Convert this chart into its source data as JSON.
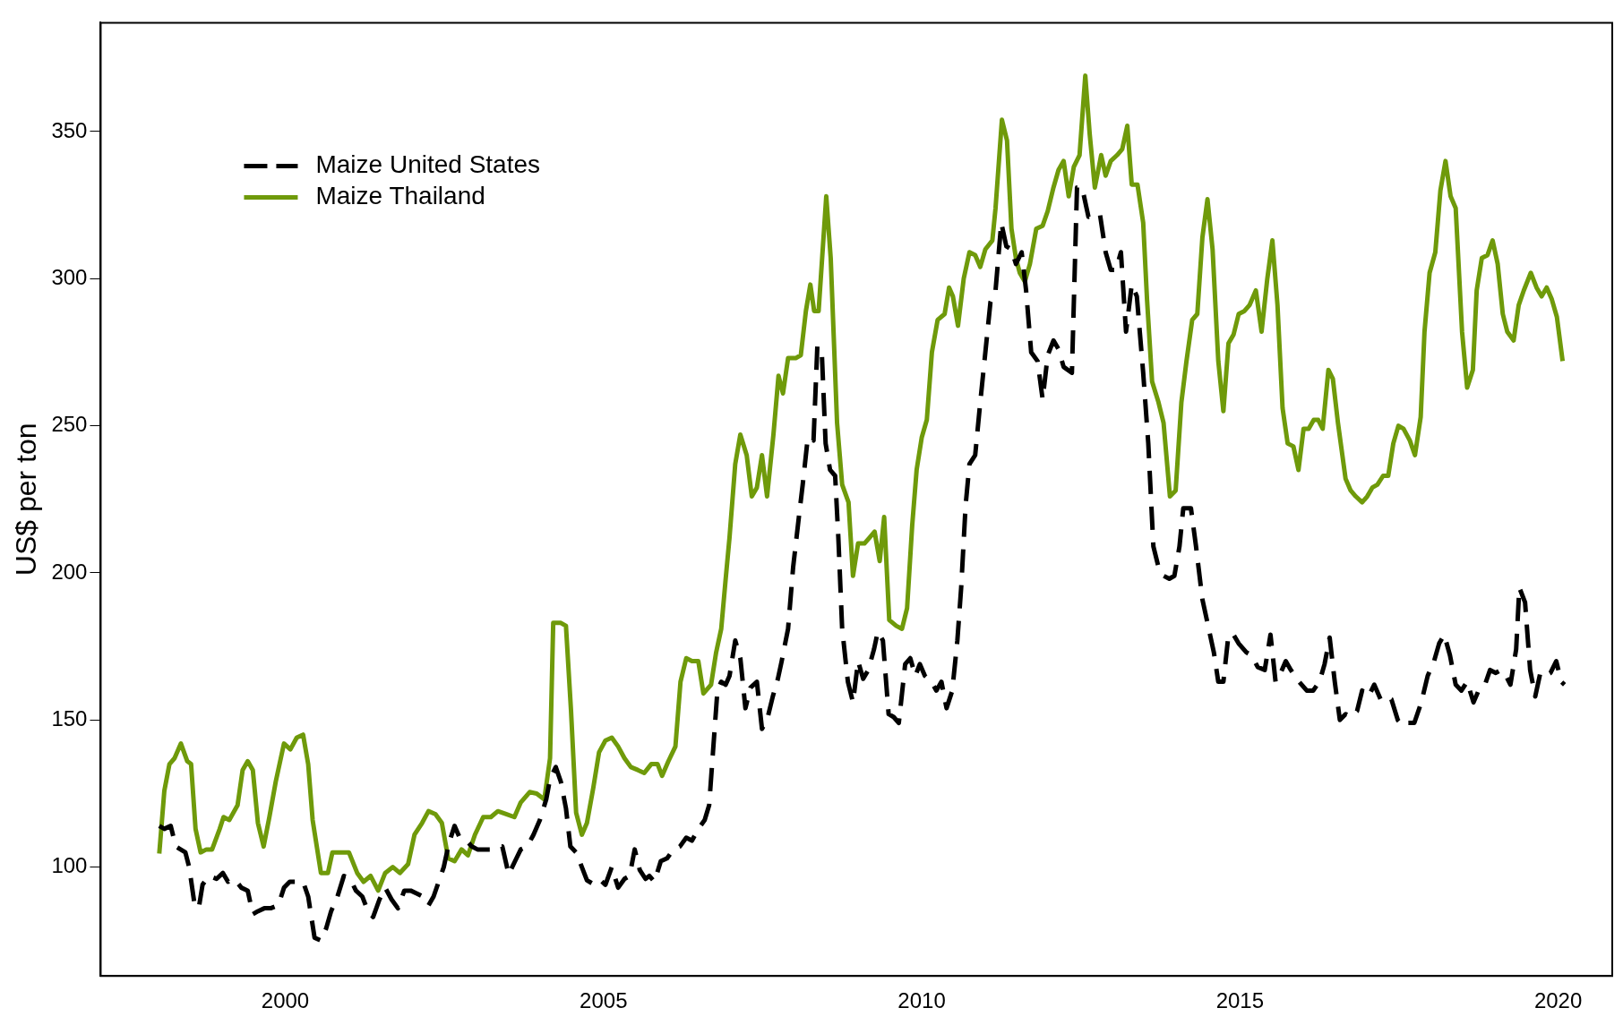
{
  "chart_data": {
    "type": "line",
    "ylabel": "US$ per ton",
    "xlim": [
      1997.1,
      2020.85
    ],
    "ylim": [
      63,
      387
    ],
    "xticks": [
      2000,
      2005,
      2010,
      2015,
      2020
    ],
    "yticks": [
      100,
      150,
      200,
      250,
      300,
      350
    ],
    "grid": false,
    "legend": "top left",
    "marker": "none",
    "series": [
      {
        "name": "Maize United States",
        "color": "#000000",
        "line_style": "dashed",
        "x": [
          1998.02,
          1998.1,
          1998.2,
          1998.28,
          1998.43,
          1998.49,
          1998.57,
          1998.64,
          1998.7,
          1998.8,
          1998.92,
          1999.02,
          1999.1,
          1999.2,
          1999.31,
          1999.41,
          1999.49,
          1999.57,
          1999.67,
          1999.77,
          1999.89,
          1999.98,
          2000.07,
          2000.18,
          2000.28,
          2000.36,
          2000.46,
          2000.56,
          2000.64,
          2000.72,
          2000.82,
          2000.92,
          2001.02,
          2001.11,
          2001.21,
          2001.3,
          2001.38,
          2001.48,
          2001.57,
          2001.67,
          2001.77,
          2001.87,
          2001.97,
          2002.07,
          2002.16,
          2002.25,
          2002.33,
          2002.41,
          2002.49,
          2002.57,
          2002.66,
          2002.74,
          2002.85,
          2002.93,
          2003.02,
          2003.13,
          2003.23,
          2003.31,
          2003.41,
          2003.51,
          2003.61,
          2003.7,
          2003.8,
          2003.9,
          2004.0,
          2004.1,
          2004.16,
          2004.25,
          2004.33,
          2004.41,
          2004.48,
          2004.57,
          2004.66,
          2004.74,
          2004.82,
          2004.93,
          2005.03,
          2005.13,
          2005.23,
          2005.33,
          2005.41,
          2005.49,
          2005.57,
          2005.66,
          2005.72,
          2005.8,
          2005.9,
          2006.0,
          2006.1,
          2006.2,
          2006.3,
          2006.39,
          2006.49,
          2006.59,
          2006.66,
          2006.72,
          2006.79,
          2006.85,
          2006.92,
          2006.98,
          2007.07,
          2007.15,
          2007.23,
          2007.31,
          2007.41,
          2007.49,
          2007.57,
          2007.66,
          2007.74,
          2007.8,
          2007.9,
          2007.98,
          2008.07,
          2008.13,
          2008.21,
          2008.3,
          2008.36,
          2008.43,
          2008.49,
          2008.56,
          2008.64,
          2008.69,
          2008.75,
          2008.84,
          2008.92,
          2009.0,
          2009.08,
          2009.16,
          2009.25,
          2009.31,
          2009.39,
          2009.48,
          2009.56,
          2009.64,
          2009.74,
          2009.82,
          2009.9,
          2009.97,
          2010.05,
          2010.15,
          2010.23,
          2010.31,
          2010.39,
          2010.48,
          2010.56,
          2010.62,
          2010.69,
          2010.75,
          2010.84,
          2010.92,
          2011.0,
          2011.08,
          2011.16,
          2011.25,
          2011.33,
          2011.41,
          2011.48,
          2011.57,
          2011.64,
          2011.72,
          2011.82,
          2011.9,
          2011.98,
          2012.07,
          2012.15,
          2012.23,
          2012.36,
          2012.44,
          2012.52,
          2012.62,
          2012.7,
          2012.8,
          2012.89,
          2012.97,
          2013.05,
          2013.13,
          2013.21,
          2013.3,
          2013.38,
          2013.48,
          2013.56,
          2013.64,
          2013.72,
          2013.8,
          2013.89,
          2013.97,
          2014.05,
          2014.11,
          2014.23,
          2014.31,
          2014.41,
          2014.51,
          2014.59,
          2014.66,
          2014.74,
          2014.82,
          2014.9,
          2014.98,
          2015.1,
          2015.18,
          2015.28,
          2015.39,
          2015.48,
          2015.56,
          2015.64,
          2015.72,
          2015.8,
          2015.89,
          2015.97,
          2016.05,
          2016.15,
          2016.25,
          2016.33,
          2016.41,
          2016.49,
          2016.57,
          2016.66,
          2016.75,
          2016.84,
          2016.92,
          2017.02,
          2017.11,
          2017.21,
          2017.3,
          2017.38,
          2017.48,
          2017.56,
          2017.64,
          2017.74,
          2017.85,
          2017.95,
          2018.05,
          2018.13,
          2018.21,
          2018.3,
          2018.39,
          2018.48,
          2018.57,
          2018.67,
          2018.75,
          2018.85,
          2018.93,
          2019.02,
          2019.1,
          2019.18,
          2019.25,
          2019.34,
          2019.39,
          2019.48,
          2019.56,
          2019.64,
          2019.72,
          2019.8,
          2019.88,
          2019.97,
          2020.05,
          2020.1
        ],
        "values": [
          114,
          113,
          114,
          107,
          105,
          100,
          88,
          86,
          94,
          97,
          96,
          98,
          95,
          96,
          93,
          92,
          84,
          85,
          86,
          86,
          87,
          93,
          95,
          95,
          95,
          90,
          76,
          75,
          79,
          85,
          90,
          97,
          96,
          92,
          90,
          85,
          83,
          89,
          93,
          89,
          86,
          92,
          92,
          91,
          90,
          87,
          90,
          95,
          100,
          108,
          114,
          110,
          109,
          107,
          106,
          106,
          106,
          107,
          107,
          97.5,
          102,
          106,
          107,
          111,
          116,
          123,
          130,
          134,
          129,
          120,
          107,
          105,
          100,
          95.5,
          94.5,
          96,
          94,
          100,
          93,
          96,
          97,
          106,
          99,
          96,
          97,
          95,
          102,
          103,
          106,
          107,
          110,
          109,
          113,
          116,
          121,
          139,
          160,
          163,
          162,
          165,
          177,
          171,
          154,
          161,
          163,
          147,
          150,
          158,
          164,
          170,
          181,
          202,
          219,
          230,
          246,
          245,
          277,
          275,
          244,
          235,
          233,
          212,
          181,
          163,
          156,
          170,
          164,
          167,
          174,
          180,
          177,
          152,
          151,
          149,
          169,
          171,
          165,
          169,
          165,
          163,
          160,
          163,
          154,
          160,
          177,
          195,
          223,
          237,
          240,
          258,
          275,
          292,
          296,
          319,
          311,
          310,
          305,
          309,
          296,
          275,
          272,
          259,
          274,
          279,
          276,
          270,
          268,
          331,
          331,
          321,
          321,
          322,
          309,
          303,
          303,
          309,
          282,
          298,
          294,
          268,
          244,
          209,
          202,
          199,
          198,
          199,
          209,
          222,
          222,
          209,
          191,
          181,
          173,
          163,
          163,
          179,
          179,
          176,
          173,
          172,
          168,
          167,
          179,
          163,
          166,
          170,
          167,
          164,
          162,
          160,
          160,
          163,
          169,
          178,
          163,
          150,
          152,
          151,
          153,
          160,
          158,
          162,
          157,
          158,
          157,
          150,
          148,
          149,
          149,
          156,
          165,
          170,
          176,
          179,
          172,
          162,
          160,
          163,
          156,
          160,
          162,
          167,
          166,
          167,
          165,
          162,
          174,
          195,
          190,
          167,
          158,
          166,
          165,
          166,
          170,
          163,
          162
        ]
      },
      {
        "name": "Maize Thailand",
        "color": "#6f9a0a",
        "line_style": "solid",
        "x": [
          1998.02,
          1998.1,
          1998.18,
          1998.26,
          1998.36,
          1998.46,
          1998.52,
          1998.59,
          1998.67,
          1998.76,
          1998.85,
          1998.97,
          1999.03,
          1999.12,
          1999.25,
          1999.33,
          1999.41,
          1999.49,
          1999.57,
          1999.66,
          1999.75,
          1999.85,
          1999.98,
          2000.08,
          2000.18,
          2000.28,
          2000.36,
          2000.43,
          2000.56,
          2000.67,
          2000.74,
          2000.89,
          2001.0,
          2001.13,
          2001.23,
          2001.34,
          2001.46,
          2001.57,
          2001.69,
          2001.8,
          2001.93,
          2002.03,
          2002.15,
          2002.25,
          2002.36,
          2002.46,
          2002.56,
          2002.66,
          2002.77,
          2002.87,
          2002.98,
          2003.11,
          2003.23,
          2003.34,
          2003.47,
          2003.6,
          2003.7,
          2003.84,
          2003.95,
          2004.07,
          2004.16,
          2004.21,
          2004.33,
          2004.41,
          2004.49,
          2004.57,
          2004.66,
          2004.74,
          2004.84,
          2004.93,
          2005.03,
          2005.13,
          2005.23,
          2005.33,
          2005.43,
          2005.54,
          2005.64,
          2005.75,
          2005.85,
          2005.92,
          2006.02,
          2006.13,
          2006.21,
          2006.3,
          2006.39,
          2006.49,
          2006.57,
          2006.69,
          2006.77,
          2006.85,
          2006.92,
          2006.98,
          2007.07,
          2007.15,
          2007.25,
          2007.33,
          2007.41,
          2007.49,
          2007.57,
          2007.67,
          2007.75,
          2007.82,
          2007.9,
          2008.02,
          2008.1,
          2008.18,
          2008.25,
          2008.31,
          2008.38,
          2008.5,
          2008.57,
          2008.67,
          2008.75,
          2008.85,
          2008.92,
          2009.0,
          2009.1,
          2009.18,
          2009.26,
          2009.34,
          2009.41,
          2009.49,
          2009.6,
          2009.69,
          2009.77,
          2009.85,
          2009.92,
          2010.0,
          2010.08,
          2010.16,
          2010.25,
          2010.36,
          2010.43,
          2010.49,
          2010.57,
          2010.66,
          2010.75,
          2010.84,
          2010.92,
          2011.0,
          2011.11,
          2011.16,
          2011.26,
          2011.34,
          2011.41,
          2011.48,
          2011.54,
          2011.62,
          2011.7,
          2011.8,
          2011.9,
          2011.98,
          2012.07,
          2012.15,
          2012.23,
          2012.31,
          2012.39,
          2012.48,
          2012.57,
          2012.64,
          2012.72,
          2012.82,
          2012.89,
          2012.97,
          2013.07,
          2013.15,
          2013.23,
          2013.3,
          2013.39,
          2013.48,
          2013.54,
          2013.62,
          2013.72,
          2013.8,
          2013.9,
          2013.99,
          2014.08,
          2014.16,
          2014.25,
          2014.33,
          2014.41,
          2014.49,
          2014.57,
          2014.66,
          2014.74,
          2014.82,
          2014.9,
          2014.98,
          2015.07,
          2015.15,
          2015.25,
          2015.34,
          2015.43,
          2015.51,
          2015.59,
          2015.67,
          2015.75,
          2015.84,
          2015.92,
          2016.0,
          2016.08,
          2016.16,
          2016.23,
          2016.3,
          2016.39,
          2016.46,
          2016.54,
          2016.66,
          2016.74,
          2016.82,
          2016.92,
          2017.0,
          2017.08,
          2017.16,
          2017.25,
          2017.33,
          2017.41,
          2017.49,
          2017.57,
          2017.67,
          2017.75,
          2017.84,
          2017.9,
          2017.98,
          2018.07,
          2018.15,
          2018.23,
          2018.31,
          2018.39,
          2018.49,
          2018.57,
          2018.66,
          2018.72,
          2018.8,
          2018.89,
          2018.97,
          2019.05,
          2019.13,
          2019.2,
          2019.3,
          2019.38,
          2019.46,
          2019.57,
          2019.66,
          2019.74,
          2019.82,
          2019.9,
          2019.98,
          2020.07
        ],
        "values": [
          104.6,
          126,
          135,
          137,
          142,
          136,
          135,
          113,
          105,
          106,
          106,
          113,
          117,
          116,
          121,
          133,
          136,
          133,
          115,
          107,
          117,
          129,
          142,
          140,
          144,
          145,
          135,
          116,
          98,
          98,
          105,
          105,
          105,
          98,
          95,
          97,
          92,
          98,
          100,
          98,
          101,
          111,
          115,
          119,
          118,
          115,
          103,
          102,
          106,
          104,
          111,
          117,
          117,
          119,
          118,
          117,
          122,
          125.5,
          125,
          123,
          137,
          183,
          183,
          182,
          153,
          118.5,
          111,
          115,
          127,
          139,
          143,
          144,
          141,
          137,
          134,
          133,
          132,
          135,
          135,
          131,
          136,
          141,
          163,
          171,
          170,
          170,
          159,
          162,
          173,
          181,
          198,
          212,
          237,
          247,
          240,
          226,
          229,
          240,
          226,
          247,
          267,
          261,
          273,
          273,
          274,
          289,
          298,
          289,
          289,
          328,
          307,
          251,
          230,
          224,
          199,
          210,
          210,
          212,
          214,
          204,
          219,
          184,
          182,
          181,
          188,
          216,
          235,
          246,
          252,
          275,
          286,
          288,
          297,
          294,
          284,
          300,
          309,
          308,
          304,
          310,
          313,
          324,
          354,
          347,
          317,
          307,
          302,
          299,
          305,
          317,
          318,
          323,
          331,
          337,
          340,
          328,
          338,
          342,
          369,
          349,
          331,
          342,
          335,
          340,
          342,
          344,
          352,
          332,
          332,
          319,
          293,
          265,
          258,
          251,
          226,
          228,
          258,
          272,
          286,
          288,
          314,
          327,
          310,
          272,
          255,
          278,
          281,
          288,
          289,
          291,
          296,
          282,
          300,
          313,
          291,
          256,
          244,
          243,
          235,
          249,
          249,
          252,
          252,
          249,
          269,
          266,
          251,
          232,
          228,
          226,
          224,
          226,
          229,
          230,
          233,
          233,
          244,
          250,
          249,
          245,
          240,
          253,
          282,
          302,
          309,
          330,
          340,
          328,
          324,
          282,
          263,
          269,
          296,
          307,
          308,
          313,
          305,
          288,
          282,
          279,
          291,
          296,
          302,
          297,
          294,
          297,
          293,
          287,
          272
        ]
      }
    ]
  }
}
